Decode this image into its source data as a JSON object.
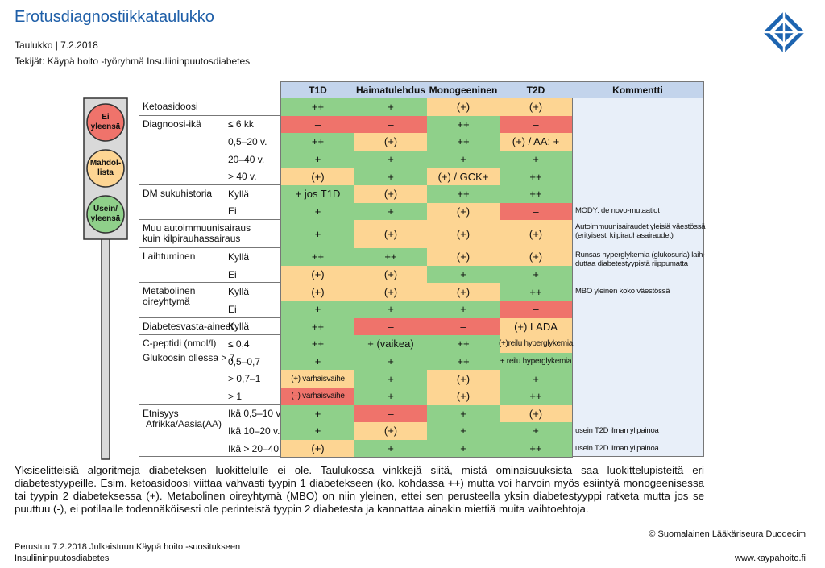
{
  "header": {
    "title": "Erotusdiagnostiikkataulukko",
    "subtitle": "Taulukko | 7.2.2018",
    "authors": "Tekijät: Käypä hoito -työryhmä Insuliininpuutosdiabetes"
  },
  "legend": [
    {
      "lines": [
        "Ei",
        "yleensä"
      ],
      "level": "red"
    },
    {
      "lines": [
        "Mahdol-",
        "lista"
      ],
      "level": "yellow"
    },
    {
      "lines": [
        "Usein/",
        "yleensä"
      ],
      "level": "green"
    }
  ],
  "levels": {
    "green": "#8fd08a",
    "yellow": "#fdd593",
    "red": "#ef736b"
  },
  "table": {
    "columns": [
      "T1D",
      "Haimatulehdus",
      "Monogeeninen",
      "T2D",
      "Kommentti"
    ],
    "groups": [
      {
        "label": [
          "Ketoasidoosi"
        ],
        "rows": [
          {
            "cells": [
              {
                "text": "++",
                "level": "green"
              },
              {
                "text": "+",
                "level": "green"
              },
              {
                "text": "(+)",
                "level": "yellow"
              },
              {
                "text": "(+)",
                "level": "yellow"
              }
            ]
          }
        ]
      },
      {
        "label": [
          "Diagnoosi-ikä"
        ],
        "rows": [
          {
            "sub": "≤ 6 kk",
            "cells": [
              {
                "text": "–",
                "level": "red"
              },
              {
                "text": "–",
                "level": "red"
              },
              {
                "text": "++",
                "level": "green"
              },
              {
                "text": "–",
                "level": "red"
              }
            ]
          },
          {
            "sub": "0,5–20 v.",
            "cells": [
              {
                "text": "++",
                "level": "green"
              },
              {
                "text": "(+)",
                "level": "yellow"
              },
              {
                "text": "++",
                "level": "green"
              },
              {
                "text": "(+) / AA: +",
                "level": "yellow"
              }
            ]
          },
          {
            "sub": "20–40 v.",
            "cells": [
              {
                "text": "+",
                "level": "green"
              },
              {
                "text": "+",
                "level": "green"
              },
              {
                "text": "+",
                "level": "green"
              },
              {
                "text": "+",
                "level": "green"
              }
            ]
          },
          {
            "sub": "> 40 v.",
            "cells": [
              {
                "text": "(+)",
                "level": "yellow"
              },
              {
                "text": "+",
                "level": "green"
              },
              {
                "text": "(+) / GCK+",
                "level": "yellow"
              },
              {
                "text": "++",
                "level": "green"
              }
            ]
          }
        ]
      },
      {
        "label": [
          "DM sukuhistoria"
        ],
        "rows": [
          {
            "sub": "Kyllä",
            "cells": [
              {
                "text": "+ jos T1D",
                "level": "green"
              },
              {
                "text": "(+)",
                "level": "yellow"
              },
              {
                "text": "++",
                "level": "green"
              },
              {
                "text": "++",
                "level": "green"
              }
            ]
          },
          {
            "sub": "Ei",
            "cells": [
              {
                "text": "+",
                "level": "green"
              },
              {
                "text": "+",
                "level": "green"
              },
              {
                "text": "(+)",
                "level": "yellow"
              },
              {
                "text": "–",
                "level": "red"
              }
            ],
            "comment": [
              "MODY: de novo-mutaatiot"
            ]
          }
        ]
      },
      {
        "label": [
          "Muu autoimmuunisairaus",
          "kuin kilpirauhassairaus"
        ],
        "rows": [
          {
            "cells": [
              {
                "text": "+",
                "level": "green"
              },
              {
                "text": "(+)",
                "level": "yellow"
              },
              {
                "text": "(+)",
                "level": "yellow"
              },
              {
                "text": "(+)",
                "level": "yellow"
              }
            ],
            "comment": [
              "Autoimmuunisairaudet yleisiä väestössä",
              "(erityisesti kilpirauhasairaudet)"
            ]
          }
        ]
      },
      {
        "label": [
          "Laihtuminen"
        ],
        "rows": [
          {
            "sub": "Kyllä",
            "cells": [
              {
                "text": "++",
                "level": "green"
              },
              {
                "text": "++",
                "level": "green"
              },
              {
                "text": "(+)",
                "level": "yellow"
              },
              {
                "text": "(+)",
                "level": "yellow"
              }
            ],
            "comment": [
              "Runsas hyperglykemia (glukosuria) laih-",
              "duttaa diabetestyypistä riippumatta"
            ]
          },
          {
            "sub": "Ei",
            "cells": [
              {
                "text": "(+)",
                "level": "yellow"
              },
              {
                "text": "(+)",
                "level": "yellow"
              },
              {
                "text": "+",
                "level": "green"
              },
              {
                "text": "+",
                "level": "green"
              }
            ]
          }
        ]
      },
      {
        "label": [
          "Metabolinen",
          "oireyhtymä"
        ],
        "rows": [
          {
            "sub": "Kyllä",
            "cells": [
              {
                "text": "(+)",
                "level": "yellow"
              },
              {
                "text": "(+)",
                "level": "yellow"
              },
              {
                "text": "(+)",
                "level": "yellow"
              },
              {
                "text": "++",
                "level": "green"
              }
            ],
            "comment": [
              "MBO yleinen koko väestössä"
            ]
          },
          {
            "sub": "Ei",
            "cells": [
              {
                "text": "+",
                "level": "green"
              },
              {
                "text": "+",
                "level": "green"
              },
              {
                "text": "+",
                "level": "green"
              },
              {
                "text": "–",
                "level": "red"
              }
            ]
          }
        ]
      },
      {
        "label": [
          "Diabetesvasta-aineet"
        ],
        "rows": [
          {
            "sub": "Kyllä",
            "cells": [
              {
                "text": "++",
                "level": "green"
              },
              {
                "text": "–",
                "level": "red"
              },
              {
                "text": "–",
                "level": "red"
              },
              {
                "text": "(+) LADA",
                "level": "yellow"
              }
            ]
          }
        ]
      },
      {
        "label": [
          "C-peptidi (nmol/l)",
          "Glukoosin ollessa > 7"
        ],
        "rows": [
          {
            "sub": "≤ 0,4",
            "cells": [
              {
                "text": "++",
                "level": "green"
              },
              {
                "text": "+ (vaikea)",
                "level": "green"
              },
              {
                "text": "++",
                "level": "green"
              },
              {
                "text": "(+)reilu hyperglykemia",
                "level": "yellow"
              }
            ]
          },
          {
            "sub": "0,5–0,7",
            "cells": [
              {
                "text": "+",
                "level": "green"
              },
              {
                "text": "+",
                "level": "green"
              },
              {
                "text": "++",
                "level": "green"
              },
              {
                "text": "+ reilu hyperglykemia",
                "level": "green"
              }
            ]
          },
          {
            "sub": "> 0,7–1",
            "cells": [
              {
                "text": "(+) varhaisvaihe",
                "level": "yellow"
              },
              {
                "text": "+",
                "level": "green"
              },
              {
                "text": "(+)",
                "level": "yellow"
              },
              {
                "text": "+",
                "level": "green"
              }
            ]
          },
          {
            "sub": "> 1",
            "cells": [
              {
                "text": "(–) varhaisvaihe",
                "level": "red"
              },
              {
                "text": "+",
                "level": "green"
              },
              {
                "text": "(+)",
                "level": "yellow"
              },
              {
                "text": "++",
                "level": "green"
              }
            ]
          }
        ]
      },
      {
        "label": [
          "Etnisyys",
          "Afrikka/Aasia(AA)"
        ],
        "rows": [
          {
            "sub": "Ikä 0,5–10 v.",
            "cells": [
              {
                "text": "+",
                "level": "green"
              },
              {
                "text": "–",
                "level": "red"
              },
              {
                "text": "+",
                "level": "green"
              },
              {
                "text": "(+)",
                "level": "yellow"
              }
            ]
          },
          {
            "sub": "Ikä 10–20 v.",
            "cells": [
              {
                "text": "+",
                "level": "green"
              },
              {
                "text": "(+)",
                "level": "yellow"
              },
              {
                "text": "+",
                "level": "green"
              },
              {
                "text": "+",
                "level": "green"
              }
            ],
            "comment": [
              "usein T2D ilman ylipainoa"
            ]
          },
          {
            "sub": "Ikä > 20–40 v.",
            "cells": [
              {
                "text": "(+)",
                "level": "yellow"
              },
              {
                "text": "+",
                "level": "green"
              },
              {
                "text": "+",
                "level": "green"
              },
              {
                "text": "++",
                "level": "green"
              }
            ],
            "comment": [
              "usein T2D ilman ylipainoa"
            ]
          }
        ]
      }
    ]
  },
  "note": "Yksiselitteisiä algoritmeja diabeteksen luokittelulle ei ole. Taulukossa vinkkejä siitä, mistä ominaisuuksista saa luokittelupisteitä eri diabetestyypeille. Esim. ketoasidoosi viittaa vahvasti tyypin 1 diabetekseen (ko. kohdassa ++) mutta voi harvoin myös esiintyä monogeenisessa tai tyypin 2 diabeteksessa (+). Metabolinen oireyhtymä (MBO) on niin yleinen, ettei sen perusteella yksin diabetestyyppi ratketa mutta jos se puuttuu (-), ei potilaalle todennäköisesti ole perinteistä tyypin 2 diabetesta ja kannattaa ainakin miettiä muita vaihtoehtoja.",
  "footer": {
    "copyright": "© Suomalainen Lääkäriseura Duodecim",
    "source": [
      "Perustuu 7.2.2018 Julkaistuun Käypä hoito -suositukseen",
      "Insuliininpuutosdiabetes"
    ],
    "url": "www.kaypahoito.fi"
  }
}
